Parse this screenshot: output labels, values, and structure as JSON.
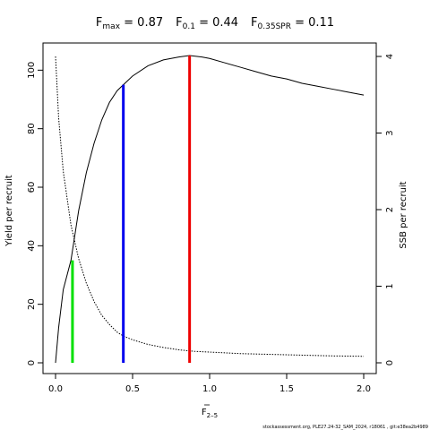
{
  "title": {
    "fmax_main": "F",
    "fmax_sub": "max",
    "fmax_value": " = 0.87",
    "f01_main": "F",
    "f01_sub": "0.1",
    "f01_value": " = 0.44",
    "fspr_main": "F",
    "fspr_sub": "0.35SPR",
    "fspr_value": " = 0.11"
  },
  "credit": "stockassessment.org, PLE27.24-32_SAM_2024, r18061 , git:e38ea2b4989",
  "chart_data": {
    "type": "line",
    "xlabel_main": "F",
    "xlabel_sub": "2–5",
    "ylabel": "Yield per recruit",
    "y2label": "SSB per recruit",
    "xlim": [
      0,
      2
    ],
    "ylim": [
      0,
      105
    ],
    "y2lim": [
      0,
      4
    ],
    "xticks": [
      0.0,
      0.5,
      1.0,
      1.5,
      2.0
    ],
    "xtick_labels": [
      "0.0",
      "0.5",
      "1.0",
      "1.5",
      "2.0"
    ],
    "yticks": [
      0,
      20,
      40,
      60,
      80,
      100
    ],
    "ytick_labels": [
      "0",
      "20",
      "40",
      "60",
      "80",
      "100"
    ],
    "y2ticks": [
      0,
      1,
      2,
      3,
      4
    ],
    "y2tick_labels": [
      "0",
      "1",
      "2",
      "3",
      "4"
    ],
    "grid": false,
    "series": [
      {
        "style": "solid",
        "axis": "left",
        "color": "#000000",
        "x": [
          0,
          0.02,
          0.05,
          0.1,
          0.15,
          0.2,
          0.25,
          0.3,
          0.35,
          0.4,
          0.44,
          0.5,
          0.6,
          0.7,
          0.8,
          0.87,
          0.95,
          1.0,
          1.1,
          1.2,
          1.3,
          1.4,
          1.5,
          1.6,
          1.7,
          1.8,
          1.9,
          2.0
        ],
        "y": [
          0,
          12,
          25,
          35,
          52,
          65,
          75,
          83,
          89,
          93,
          95,
          98,
          101.5,
          103.5,
          104.5,
          105,
          104.5,
          104,
          102.5,
          101,
          99.5,
          98,
          97,
          95.5,
          94.5,
          93.5,
          92.5,
          91.5
        ]
      },
      {
        "style": "dotted",
        "axis": "right",
        "color": "#000000",
        "x": [
          0,
          0.02,
          0.05,
          0.1,
          0.15,
          0.2,
          0.25,
          0.3,
          0.35,
          0.4,
          0.44,
          0.5,
          0.6,
          0.7,
          0.8,
          0.87,
          0.9,
          1.0,
          1.2,
          1.4,
          1.6,
          1.8,
          2.0
        ],
        "y": [
          4.0,
          3.2,
          2.5,
          1.8,
          1.36,
          1.04,
          0.8,
          0.62,
          0.5,
          0.4,
          0.35,
          0.3,
          0.24,
          0.2,
          0.17,
          0.155,
          0.15,
          0.14,
          0.12,
          0.11,
          0.1,
          0.09,
          0.085
        ]
      }
    ],
    "vlines": [
      {
        "x": 0.11,
        "y": 35,
        "color": "#00e000"
      },
      {
        "x": 0.44,
        "y": 95,
        "color": "#0000ee"
      },
      {
        "x": 0.87,
        "y": 105,
        "color": "#ee0000"
      }
    ]
  }
}
